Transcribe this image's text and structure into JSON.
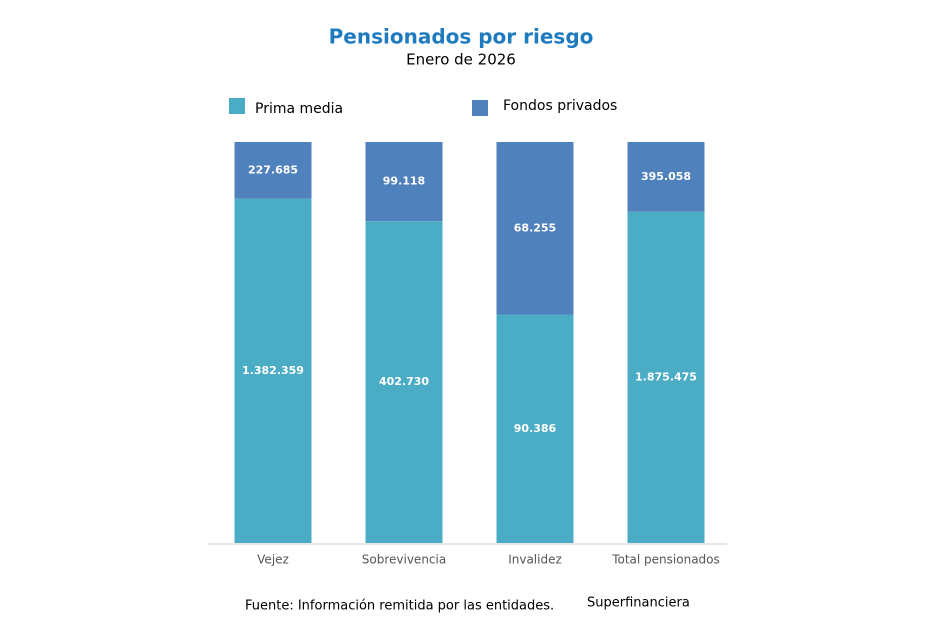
{
  "chart_data": {
    "type": "bar",
    "stacking": "percent",
    "title": "Pensionados por riesgo",
    "subtitle": "Enero de 2026",
    "categories": [
      "Vejez",
      "Sobrevivencia",
      "Invalidez",
      "Total pensionados"
    ],
    "series": [
      {
        "name": "Prima media",
        "color": "#4bacc6",
        "values": [
          1382359,
          402730,
          90386,
          1875475
        ],
        "value_labels": [
          "1.382.359",
          "402.730",
          "90.386",
          "1.875.475"
        ]
      },
      {
        "name": "Fondos privados",
        "color": "#4f81bd",
        "values": [
          227685,
          99118,
          68255,
          395058
        ],
        "value_labels": [
          "227.685",
          "99.118",
          "68.255",
          "395.058"
        ]
      }
    ],
    "footer": [
      "Fuente: Información remitida por las entidades.",
      "Superfinanciera"
    ]
  }
}
